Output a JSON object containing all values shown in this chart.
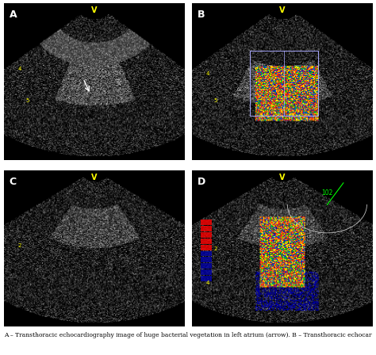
{
  "figure_width": 4.74,
  "figure_height": 4.48,
  "dpi": 100,
  "background_color": "#000000",
  "border_color": "#ffffff",
  "panels": [
    "A",
    "B",
    "C",
    "D"
  ],
  "panel_label_color": "#ffffff",
  "panel_label_fontsize": 9,
  "v_label_color": "#ffff00",
  "v_label_text": "V",
  "number_labels_A": [
    "5",
    "4"
  ],
  "number_labels_B": [
    "5",
    "4"
  ],
  "number_labels_C": [
    "2"
  ],
  "number_labels_D": [
    "2",
    "4"
  ],
  "angle_label_D": "102",
  "caption": "A – Transthoracic echocardiography image of huge bacterial vegetation in left atrium (arrow). B – Transthoracic echocar",
  "caption_fontsize": 5.5,
  "caption_color": "#000000",
  "outer_bg": "#ffffff",
  "grid_color_B": "#a0c0ff",
  "grid_color_D": "#c0d0c0",
  "doppler_colors": [
    "#ff0000",
    "#ff8800",
    "#ffff00",
    "#00cc00",
    "#0000ff"
  ],
  "has_color_flow_B": true,
  "has_color_flow_D": true,
  "arrow_color_A": "#ffffff"
}
